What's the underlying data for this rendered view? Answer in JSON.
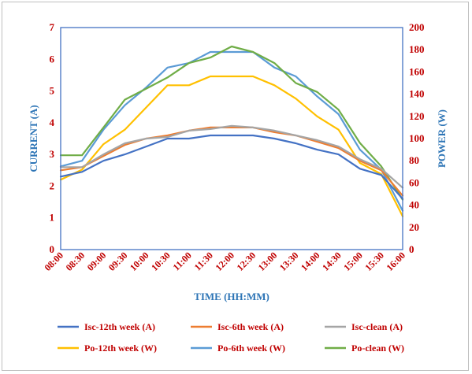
{
  "chart_data": {
    "type": "line",
    "x_categories": [
      "08:00",
      "08:30",
      "09:00",
      "09:30",
      "10:00",
      "10:30",
      "11:00",
      "11:30",
      "12:00",
      "12:30",
      "13:00",
      "13:30",
      "14:00",
      "14:30",
      "15:00",
      "15:30",
      "16:00"
    ],
    "xlabel": "TIME (HH:MM)",
    "ylabel_left": "CURRENT (A)",
    "ylabel_right": "POWER (W)",
    "ylim_left": [
      0,
      7
    ],
    "ylim_right": [
      0,
      200
    ],
    "yticks_left": [
      "0",
      "1",
      "2",
      "3",
      "4",
      "5",
      "6",
      "7"
    ],
    "yticks_right": [
      "0",
      "20",
      "40",
      "60",
      "80",
      "100",
      "120",
      "140",
      "160",
      "180",
      "200"
    ],
    "grid": false,
    "legend_position": "bottom",
    "series": [
      {
        "name": "Isc-12th week (A)",
        "axis": "left",
        "color": "#4472c4",
        "values": [
          2.3,
          2.45,
          2.8,
          3.0,
          3.25,
          3.5,
          3.5,
          3.6,
          3.6,
          3.6,
          3.5,
          3.35,
          3.15,
          3.0,
          2.55,
          2.35,
          1.6
        ]
      },
      {
        "name": "Isc-6th week (A)",
        "axis": "left",
        "color": "#ed7d31",
        "values": [
          2.5,
          2.6,
          2.95,
          3.3,
          3.5,
          3.6,
          3.75,
          3.85,
          3.85,
          3.85,
          3.7,
          3.6,
          3.4,
          3.2,
          2.8,
          2.5,
          1.7
        ]
      },
      {
        "name": "Isc-clean (A)",
        "axis": "left",
        "color": "#a5a5a5",
        "values": [
          2.6,
          2.6,
          3.0,
          3.35,
          3.5,
          3.55,
          3.75,
          3.8,
          3.9,
          3.85,
          3.75,
          3.6,
          3.45,
          3.25,
          2.85,
          2.55,
          1.95
        ]
      },
      {
        "name": "Po-12th week (W)",
        "axis": "right",
        "color": "#ffc000",
        "values": [
          63,
          72,
          95,
          108,
          128,
          148,
          148,
          156,
          156,
          156,
          148,
          136,
          120,
          108,
          78,
          68,
          30
        ]
      },
      {
        "name": "Po-6th week (W)",
        "axis": "right",
        "color": "#5b9bd5",
        "values": [
          75,
          80,
          108,
          130,
          146,
          164,
          168,
          178,
          178,
          178,
          164,
          156,
          138,
          122,
          90,
          72,
          35
        ]
      },
      {
        "name": "Po-clean (W)",
        "axis": "right",
        "color": "#70ad47",
        "values": [
          85,
          85,
          110,
          135,
          145,
          155,
          168,
          173,
          183,
          178,
          168,
          150,
          142,
          126,
          96,
          75,
          45
        ]
      }
    ]
  }
}
